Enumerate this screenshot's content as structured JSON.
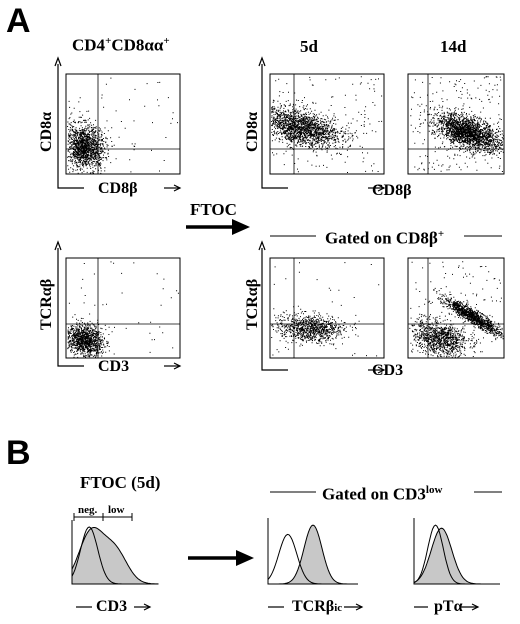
{
  "panel_a": {
    "letter": "A",
    "col_headers": {
      "left": "CD4+CD8αα+",
      "mid": "5d",
      "right": "14d"
    },
    "row1": {
      "y_label": "CD8α",
      "x_label": "CD8β"
    },
    "row2": {
      "y_label": "TCRαβ",
      "x_label": "CD3"
    },
    "ftoc": "FTOC",
    "gated": "Gated on CD8β+"
  },
  "panel_b": {
    "letter": "B",
    "title": "FTOC (5d)",
    "gate_neg": "neg.",
    "gate_low": "low",
    "gated": "Gated on CD3low",
    "x_labels": [
      "CD3",
      "TCRβic",
      "pTα"
    ]
  },
  "colors": {
    "ink": "#000000",
    "fill": "#c8c8c8",
    "background": "#ffffff"
  }
}
